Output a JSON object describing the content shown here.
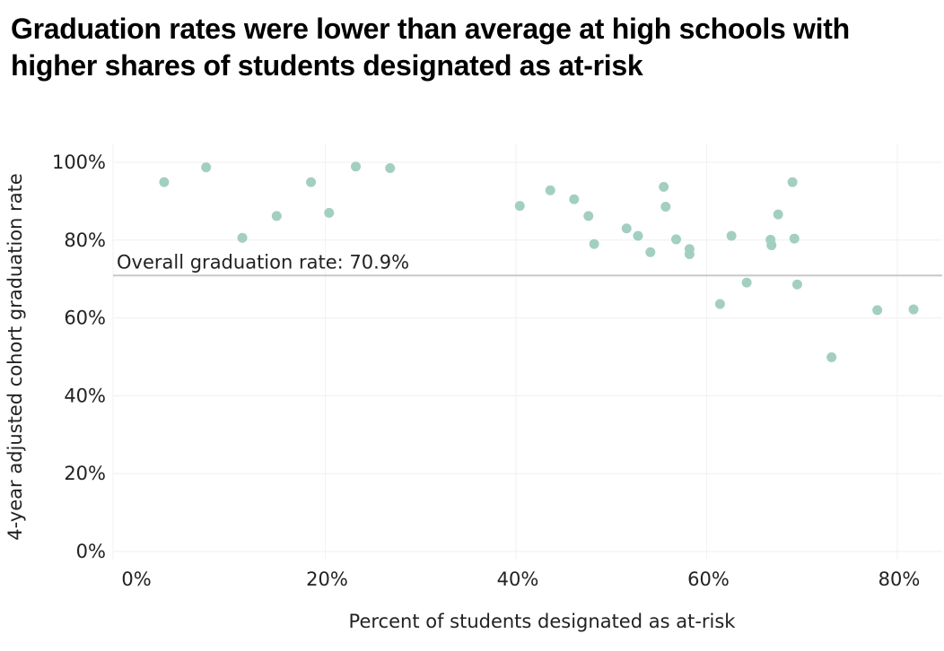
{
  "chart_data": {
    "type": "scatter",
    "title": "Graduation rates were lower than average at high schools with higher shares of students designated as at-risk",
    "xlabel": "Percent of students designated as at-risk",
    "ylabel": "4-year adjusted cohort graduation rate",
    "xlim": [
      0,
      84
    ],
    "ylim": [
      0,
      100
    ],
    "x_ticks": [
      0,
      20,
      40,
      60,
      80
    ],
    "x_tick_labels": [
      "0%",
      "20%",
      "40%",
      "60%",
      "80%"
    ],
    "y_ticks": [
      0,
      20,
      40,
      60,
      80,
      100
    ],
    "y_tick_labels": [
      "0%",
      "20%",
      "40%",
      "60%",
      "80%",
      "100%"
    ],
    "grid": true,
    "reference_line": {
      "y": 70.9,
      "label": "Overall graduation rate: 70.9%"
    },
    "point_color": "#a3cfc2",
    "points": [
      [
        3.1,
        94.9
      ],
      [
        7.5,
        98.7
      ],
      [
        11.3,
        80.6
      ],
      [
        14.9,
        86.2
      ],
      [
        18.5,
        94.9
      ],
      [
        20.4,
        87.0
      ],
      [
        23.2,
        98.9
      ],
      [
        26.8,
        98.5
      ],
      [
        40.4,
        88.8
      ],
      [
        43.6,
        92.8
      ],
      [
        46.1,
        90.5
      ],
      [
        47.6,
        86.2
      ],
      [
        48.2,
        79.0
      ],
      [
        51.6,
        83.0
      ],
      [
        52.8,
        81.1
      ],
      [
        54.1,
        76.9
      ],
      [
        55.5,
        93.7
      ],
      [
        55.7,
        88.6
      ],
      [
        56.8,
        80.2
      ],
      [
        58.2,
        77.7
      ],
      [
        58.2,
        76.4
      ],
      [
        61.4,
        63.6
      ],
      [
        62.6,
        81.1
      ],
      [
        64.2,
        69.1
      ],
      [
        66.7,
        80.1
      ],
      [
        66.8,
        78.7
      ],
      [
        67.5,
        86.6
      ],
      [
        69.0,
        94.9
      ],
      [
        69.2,
        80.4
      ],
      [
        69.5,
        68.6
      ],
      [
        73.1,
        49.9
      ],
      [
        77.9,
        62.0
      ],
      [
        81.7,
        62.2
      ]
    ]
  }
}
